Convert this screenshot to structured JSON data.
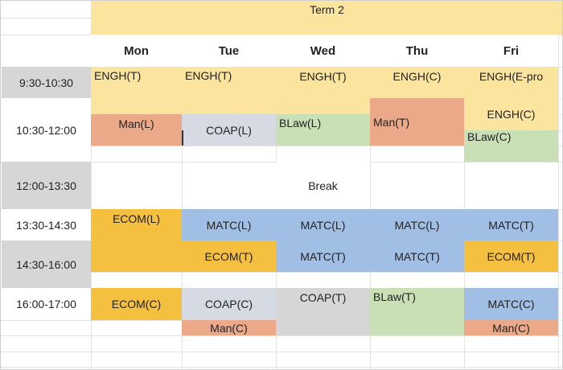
{
  "title": "Term 2",
  "days": [
    "Mon",
    "Tue",
    "Wed",
    "Thu",
    "Fri"
  ],
  "times": [
    "9:30-10:30",
    "10:30-12:00",
    "12:00-13:30",
    "13:30-14:30",
    "14:30-16:00",
    "16:00-17:00"
  ],
  "break_label": "Break",
  "colors": {
    "yellow": "#fbe49e",
    "orange": "#eba98a",
    "gray": "#d6d6d6",
    "slate": "#d5dae3",
    "green": "#c9dfb6",
    "blue": "#a1bee4",
    "gold": "#f5bf40"
  },
  "slots": {
    "mon_engh": "ENGH(T)",
    "tue_engh": "ENGH(T)",
    "wed_engh": "ENGH(T)",
    "thu_engh": "ENGH(C)",
    "fri_engh_e": "ENGH(E-pro",
    "fri_engh_c": "ENGH(C)",
    "mon_man": "Man(L)",
    "tue_coap": "COAP(L)",
    "wed_blaw": "BLaw(L)",
    "thu_man": "Man(T)",
    "fri_blaw": "BLaw(C)",
    "mon_ecom_l": "ECOM(L)",
    "tue_matc_l": "MATC(L)",
    "wed_matc_l": "MATC(L)",
    "thu_matc_l": "MATC(L)",
    "fri_matc_t": "MATC(T)",
    "tue_ecom_t": "ECOM(T)",
    "wed_matc_t": "MATC(T)",
    "thu_matc_t": "MATC(T)",
    "fri_ecom_t": "ECOM(T)",
    "mon_ecom_c": "ECOM(C)",
    "tue_coap_c": "COAP(C)",
    "wed_coap_t": "COAP(T)",
    "thu_blaw_t": "BLaw(T)",
    "fri_matc_c": "MATC(C)",
    "tue_man_c": "Man(C)",
    "fri_man_c": "Man(C)"
  }
}
